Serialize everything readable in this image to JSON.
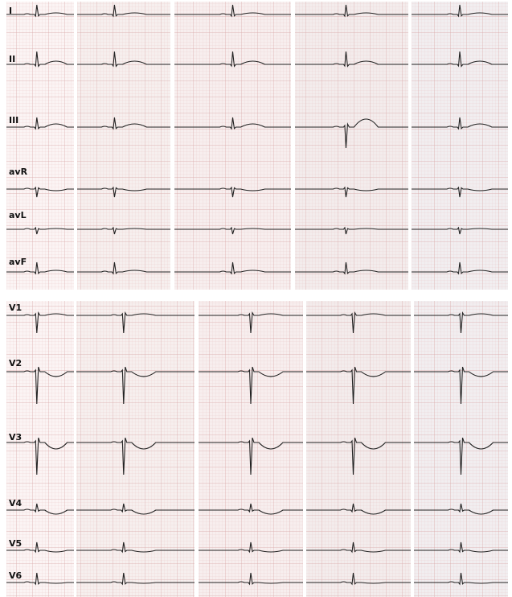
{
  "panels": [
    {
      "leads": [
        "I",
        "II",
        "III",
        "avR",
        "avL",
        "avF"
      ]
    },
    {
      "leads": [
        "V1",
        "V2",
        "V3",
        "V4",
        "V5",
        "V6"
      ]
    }
  ]
}
